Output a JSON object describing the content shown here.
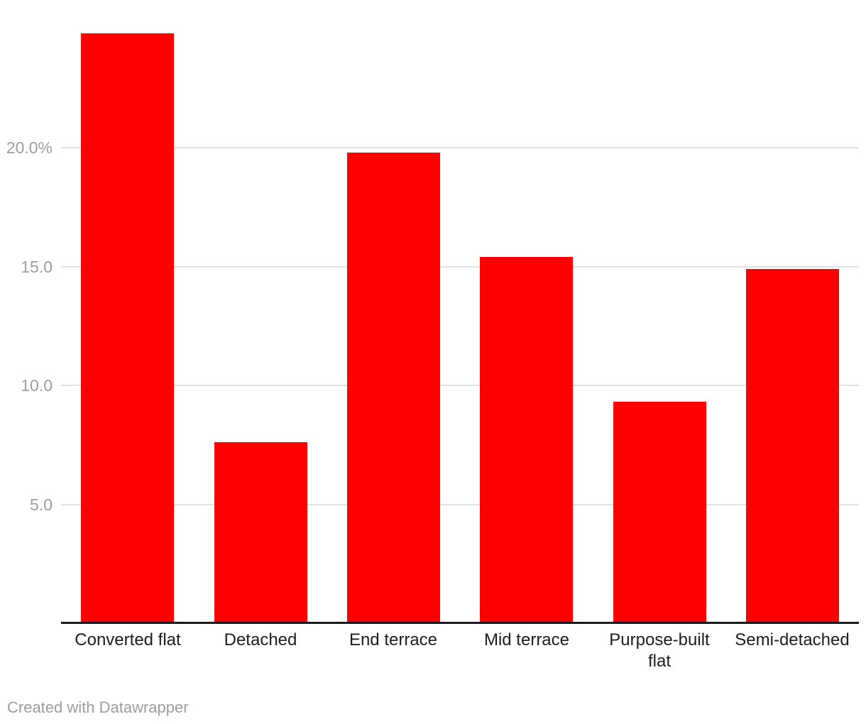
{
  "chart_data": {
    "type": "bar",
    "categories": [
      "Converted flat",
      "Detached",
      "End terrace",
      "Mid terrace",
      "Purpose-built flat",
      "Semi-detached"
    ],
    "values": [
      24.8,
      7.6,
      19.8,
      15.4,
      9.3,
      14.9
    ],
    "title": "",
    "xlabel": "",
    "ylabel": "",
    "ylim": [
      0,
      25
    ],
    "yticks": [
      {
        "value": 5,
        "label": "5.0"
      },
      {
        "value": 10,
        "label": "10.0"
      },
      {
        "value": 15,
        "label": "15.0"
      },
      {
        "value": 20,
        "label": "20.0%"
      }
    ],
    "grid": true,
    "legend": false
  },
  "colors": {
    "bar": "#ff0000",
    "grid": "#e2e2e2",
    "axis": "#1a1a1c",
    "tick_label": "#9e9e9e",
    "category_label": "#1d1d1d",
    "footer_text": "#9d9d9d",
    "background": "#ffffff"
  },
  "footer": {
    "credit": "Created with Datawrapper"
  }
}
